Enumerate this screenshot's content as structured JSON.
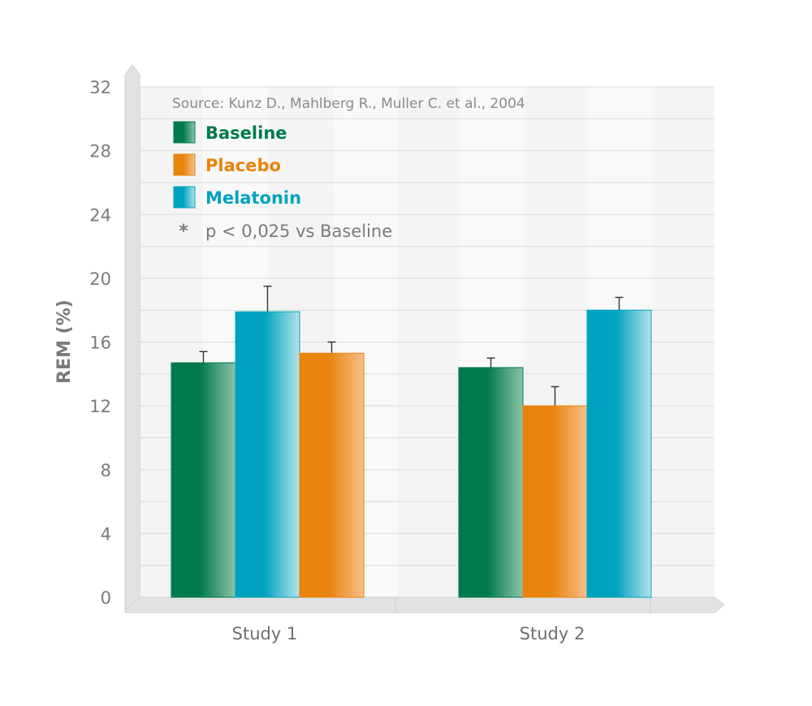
{
  "chart_data": {
    "type": "bar",
    "source": "Source: Kunz D., Mahlberg R., Muller C. et al., 2004",
    "ylabel": "REM (%)",
    "xlabel": "",
    "ylim": [
      0,
      32
    ],
    "yticks": [
      0,
      4,
      8,
      12,
      16,
      20,
      24,
      28,
      32
    ],
    "grid": true,
    "legend_position": "top-left",
    "categories": [
      "Study 1",
      "Study 2"
    ],
    "series": [
      {
        "name": "Baseline",
        "color": "#007a4d",
        "color_light": "#8cc4a8",
        "values": [
          14.7,
          14.4
        ],
        "errors": [
          0.7,
          0.6
        ]
      },
      {
        "name": "Placebo",
        "color": "#e8830e",
        "color_light": "#f7c08a",
        "values": [
          15.3,
          12.0
        ],
        "errors": [
          0.7,
          1.2
        ]
      },
      {
        "name": "Melatonin",
        "color": "#00a3bf",
        "color_light": "#b3e2ea",
        "values": [
          17.9,
          18.0
        ],
        "errors": [
          1.6,
          0.8
        ]
      }
    ],
    "bar_order": [
      [
        "Baseline",
        "Melatonin",
        "Placebo"
      ],
      [
        "Baseline",
        "Placebo",
        "Melatonin"
      ]
    ],
    "note": {
      "symbol": "*",
      "text": "p < 0,025 vs Baseline"
    }
  }
}
